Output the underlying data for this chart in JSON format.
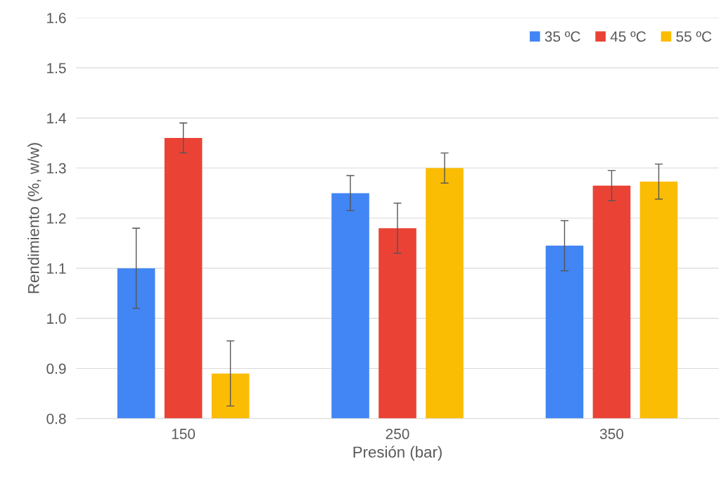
{
  "chart_data": {
    "type": "bar",
    "xlabel": "Presión (bar)",
    "ylabel": "Rendimiento (%, w/w)",
    "categories": [
      "150",
      "250",
      "350"
    ],
    "series": [
      {
        "name": "35 ºC",
        "color": "#4285f4",
        "values": [
          1.1,
          1.25,
          1.145
        ],
        "errors": [
          0.08,
          0.035,
          0.05
        ]
      },
      {
        "name": "45 ºC",
        "color": "#ea4335",
        "values": [
          1.36,
          1.18,
          1.265
        ],
        "errors": [
          0.03,
          0.05,
          0.03
        ]
      },
      {
        "name": "55 ºC",
        "color": "#fbbc04",
        "values": [
          0.89,
          1.3,
          1.273
        ],
        "errors": [
          0.065,
          0.03,
          0.035
        ]
      }
    ],
    "ylim": [
      0.8,
      1.6
    ],
    "yticks": [
      {
        "value": 0.8,
        "label": "0.8"
      },
      {
        "value": 0.9,
        "label": "0.9"
      },
      {
        "value": 1.0,
        "label": "1.0"
      },
      {
        "value": 1.1,
        "label": "1.1"
      },
      {
        "value": 1.2,
        "label": "1.2"
      },
      {
        "value": 1.3,
        "label": "1.3"
      },
      {
        "value": 1.4,
        "label": "1.4"
      },
      {
        "value": 1.5,
        "label": "1.5"
      },
      {
        "value": 1.6,
        "label": "1.6"
      }
    ],
    "grid": "y",
    "legend": "top right"
  }
}
